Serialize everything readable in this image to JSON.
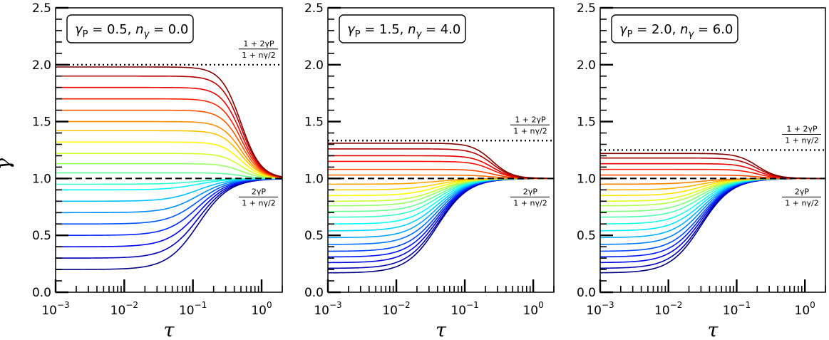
{
  "chart_data": [
    {
      "type": "line",
      "panel": 1,
      "legend": "γP = 0.5, nγ = 0.0",
      "gamma_P": 0.5,
      "n_gamma": 0.0,
      "upper_asymptote": 2.0,
      "lower_asymptote": 1.0,
      "curve_initial_values": [
        0.2,
        0.3,
        0.4,
        0.5,
        0.6,
        0.7,
        0.8,
        0.9,
        0.95,
        1.05,
        1.13,
        1.22,
        1.32,
        1.42,
        1.5,
        1.6,
        1.7,
        1.8,
        1.9,
        1.98
      ],
      "transition_tau": [
        0.12,
        0.5
      ],
      "xlabel": "τ",
      "ylabel": "γ",
      "xlim": [
        0.001,
        2
      ],
      "ylim": [
        0,
        2.5
      ],
      "xticks": [
        "10−3",
        "10−2",
        "10−1",
        "100"
      ],
      "yticks": [
        "0.0",
        "0.5",
        "1.0",
        "1.5",
        "2.0",
        "2.5"
      ],
      "annotation_upper": {
        "num": "1 + 2γP",
        "den": "1 + nγ/2"
      },
      "annotation_lower": {
        "num": "2γP",
        "den": "1 + nγ/2"
      }
    },
    {
      "type": "line",
      "panel": 2,
      "legend": "γP = 1.5, nγ = 4.0",
      "gamma_P": 1.5,
      "n_gamma": 4.0,
      "upper_asymptote": 1.333,
      "lower_asymptote": 1.0,
      "curve_initial_values": [
        0.17,
        0.21,
        0.26,
        0.31,
        0.36,
        0.42,
        0.48,
        0.54,
        0.6,
        0.66,
        0.71,
        0.76,
        0.8,
        0.85,
        0.9,
        0.95,
        1.03,
        1.08,
        1.15,
        1.2,
        1.26,
        1.31
      ],
      "transition_tau": [
        0.04,
        0.25
      ],
      "xlabel": "τ",
      "ylabel": "",
      "xlim": [
        0.001,
        2
      ],
      "ylim": [
        0,
        2.5
      ],
      "xticks": [
        "10−3",
        "10−2",
        "10−1",
        "100"
      ],
      "yticks": [
        "0.0",
        "0.5",
        "1.0",
        "1.5",
        "2.0",
        "2.5"
      ],
      "annotation_upper": {
        "num": "1 + 2γP",
        "den": "1 + nγ/2"
      },
      "annotation_lower": {
        "num": "2γP",
        "den": "1 + nγ/2"
      }
    },
    {
      "type": "line",
      "panel": 3,
      "legend": "γP = 2.0, nγ = 6.0",
      "gamma_P": 2.0,
      "n_gamma": 6.0,
      "upper_asymptote": 1.25,
      "lower_asymptote": 1.0,
      "curve_initial_values": [
        0.17,
        0.21,
        0.26,
        0.31,
        0.36,
        0.42,
        0.48,
        0.54,
        0.6,
        0.66,
        0.71,
        0.76,
        0.8,
        0.85,
        0.9,
        0.95,
        1.03,
        1.08,
        1.13,
        1.18,
        1.22
      ],
      "transition_tau": [
        0.03,
        0.2
      ],
      "xlabel": "τ",
      "ylabel": "",
      "xlim": [
        0.001,
        2
      ],
      "ylim": [
        0,
        2.5
      ],
      "xticks": [
        "10−3",
        "10−2",
        "10−1",
        "100"
      ],
      "yticks": [
        "0.0",
        "0.5",
        "1.0",
        "1.5",
        "2.0",
        "2.5"
      ],
      "annotation_upper": {
        "num": "1 + 2γP",
        "den": "1 + nγ/2"
      },
      "annotation_lower": {
        "num": "2γP",
        "den": "1 + nγ/2"
      }
    }
  ]
}
